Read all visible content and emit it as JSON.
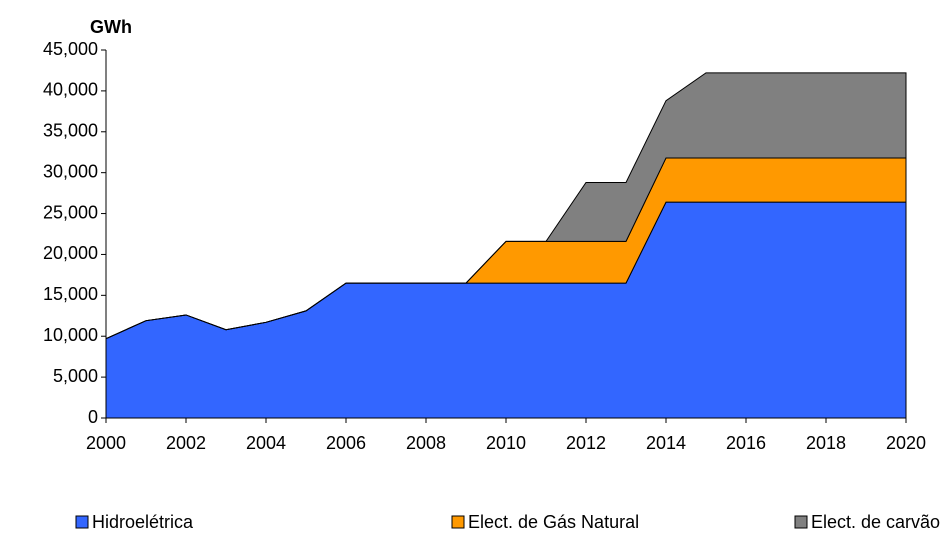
{
  "chart_data": {
    "type": "stacked_area",
    "y_axis_label": "GWh",
    "x": [
      2000,
      2001,
      2002,
      2003,
      2004,
      2005,
      2006,
      2007,
      2008,
      2009,
      2010,
      2011,
      2012,
      2013,
      2014,
      2015,
      2016,
      2017,
      2018,
      2019,
      2020
    ],
    "series": [
      {
        "name": "Hidroelétrica",
        "color": "#3366ff",
        "values": [
          9700,
          11900,
          12600,
          10800,
          11700,
          13100,
          16500,
          16500,
          16500,
          16500,
          16500,
          16500,
          16500,
          16500,
          26400,
          26400,
          26400,
          26400,
          26400,
          26400,
          26400
        ]
      },
      {
        "name": "Elect. de Gás Natural",
        "color": "#ff9900",
        "values": [
          0,
          0,
          0,
          0,
          0,
          0,
          0,
          0,
          0,
          0,
          5100,
          5100,
          5100,
          5100,
          5400,
          5400,
          5400,
          5400,
          5400,
          5400,
          5400
        ]
      },
      {
        "name": "Elect. de carvão Mineral",
        "color": "#808080",
        "values": [
          0,
          0,
          0,
          0,
          0,
          0,
          0,
          0,
          0,
          0,
          0,
          0,
          7200,
          7200,
          7000,
          10400,
          10400,
          10400,
          10400,
          10400,
          10400
        ]
      }
    ],
    "xlim": [
      2000,
      2020
    ],
    "xticks": [
      2000,
      2002,
      2004,
      2006,
      2008,
      2010,
      2012,
      2014,
      2016,
      2018,
      2020
    ],
    "ylim": [
      0,
      45000
    ],
    "yticks": [
      0,
      {
        "value": 5000,
        "label": "5,000"
      },
      {
        "value": 10000,
        "label": "10,000"
      },
      {
        "value": 15000,
        "label": "15,000"
      },
      {
        "value": 20000,
        "label": "20,000"
      },
      {
        "value": 25000,
        "label": "25,000"
      },
      {
        "value": 30000,
        "label": "30,000"
      },
      {
        "value": 35000,
        "label": "35,000"
      },
      {
        "value": 40000,
        "label": "40,000"
      },
      {
        "value": 45000,
        "label": "45,000"
      }
    ],
    "grid": false,
    "legend": "bottom"
  }
}
